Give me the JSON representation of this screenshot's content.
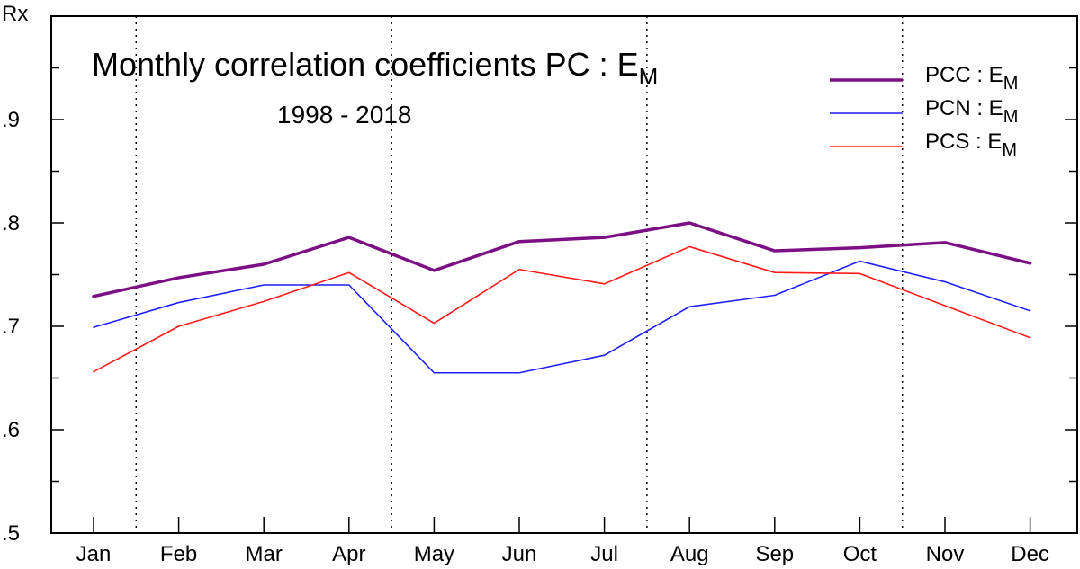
{
  "chart_data": {
    "type": "line",
    "title": "Monthly correlation coefficients  PC : E",
    "title_subscript": "M",
    "subtitle": "1998 - 2018",
    "ylabel": "Rx",
    "xlabel": "",
    "categories": [
      "Jan",
      "Feb",
      "Mar",
      "Apr",
      "May",
      "Jun",
      "Jul",
      "Aug",
      "Sep",
      "Oct",
      "Nov",
      "Dec"
    ],
    "ylim": [
      0.5,
      1.0
    ],
    "yticks": [
      0.5,
      0.6,
      0.7,
      0.8,
      0.9
    ],
    "ytick_labels": [
      ".5",
      ".6",
      ".7",
      ".8",
      ".9"
    ],
    "legend_position": "top-right",
    "grid": false,
    "season_separators_after": [
      "Jan",
      "Apr",
      "Jul",
      "Oct"
    ],
    "series": [
      {
        "name": "PCC : E",
        "name_subscript": "M",
        "color": "#7b0f83",
        "line_width": 3.5,
        "values": [
          0.729,
          0.747,
          0.76,
          0.786,
          0.754,
          0.782,
          0.786,
          0.8,
          0.773,
          0.776,
          0.781,
          0.761
        ]
      },
      {
        "name": "PCN : E",
        "name_subscript": "M",
        "color": "#1f1fff",
        "line_width": 1.6,
        "values": [
          0.699,
          0.723,
          0.74,
          0.74,
          0.655,
          0.655,
          0.672,
          0.719,
          0.73,
          0.763,
          0.743,
          0.715
        ]
      },
      {
        "name": "PCS : E",
        "name_subscript": "M",
        "color": "#ff1a1a",
        "line_width": 1.6,
        "values": [
          0.656,
          0.7,
          0.724,
          0.752,
          0.703,
          0.755,
          0.741,
          0.777,
          0.752,
          0.751,
          0.72,
          0.689
        ]
      }
    ]
  }
}
